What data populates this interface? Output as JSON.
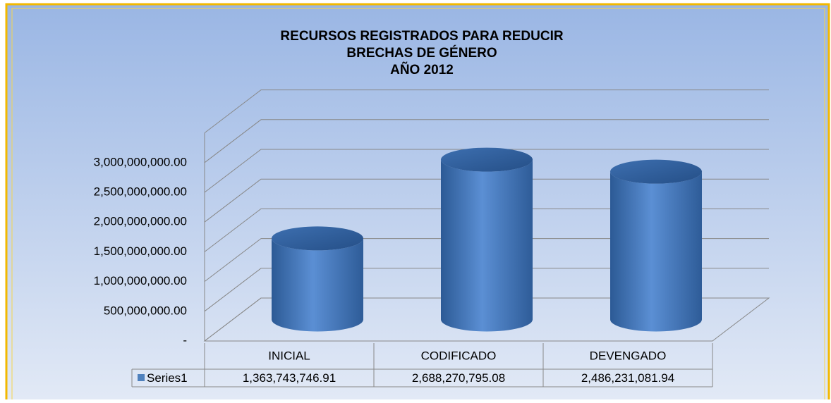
{
  "chart_data": {
    "type": "cylinder3d",
    "title": [
      "RECURSOS REGISTRADOS PARA REDUCIR",
      "BRECHAS DE GÉNERO",
      "AÑO 2012"
    ],
    "categories": [
      "INICIAL",
      "CODIFICADO",
      "DEVENGADO"
    ],
    "series": [
      {
        "name": "Series1",
        "color": "#4f81bd",
        "values": [
          1363743746.91,
          2688270795.08,
          2486231081.94
        ],
        "value_labels": [
          "1,363,743,746.91",
          "2,688,270,795.08",
          "2,486,231,081.94"
        ]
      }
    ],
    "ylim": [
      0,
      3500000000
    ],
    "yticks": [
      {
        "value": 0,
        "label": "-"
      },
      {
        "value": 500000000,
        "label": "500,000,000.00"
      },
      {
        "value": 1000000000,
        "label": "1,000,000,000.00"
      },
      {
        "value": 1500000000,
        "label": "1,500,000,000.00"
      },
      {
        "value": 2000000000,
        "label": "2,000,000,000.00"
      },
      {
        "value": 2500000000,
        "label": "2,500,000,000.00"
      },
      {
        "value": 3000000000,
        "label": "3,000,000,000.00"
      }
    ],
    "grid": true,
    "data_table": true
  }
}
